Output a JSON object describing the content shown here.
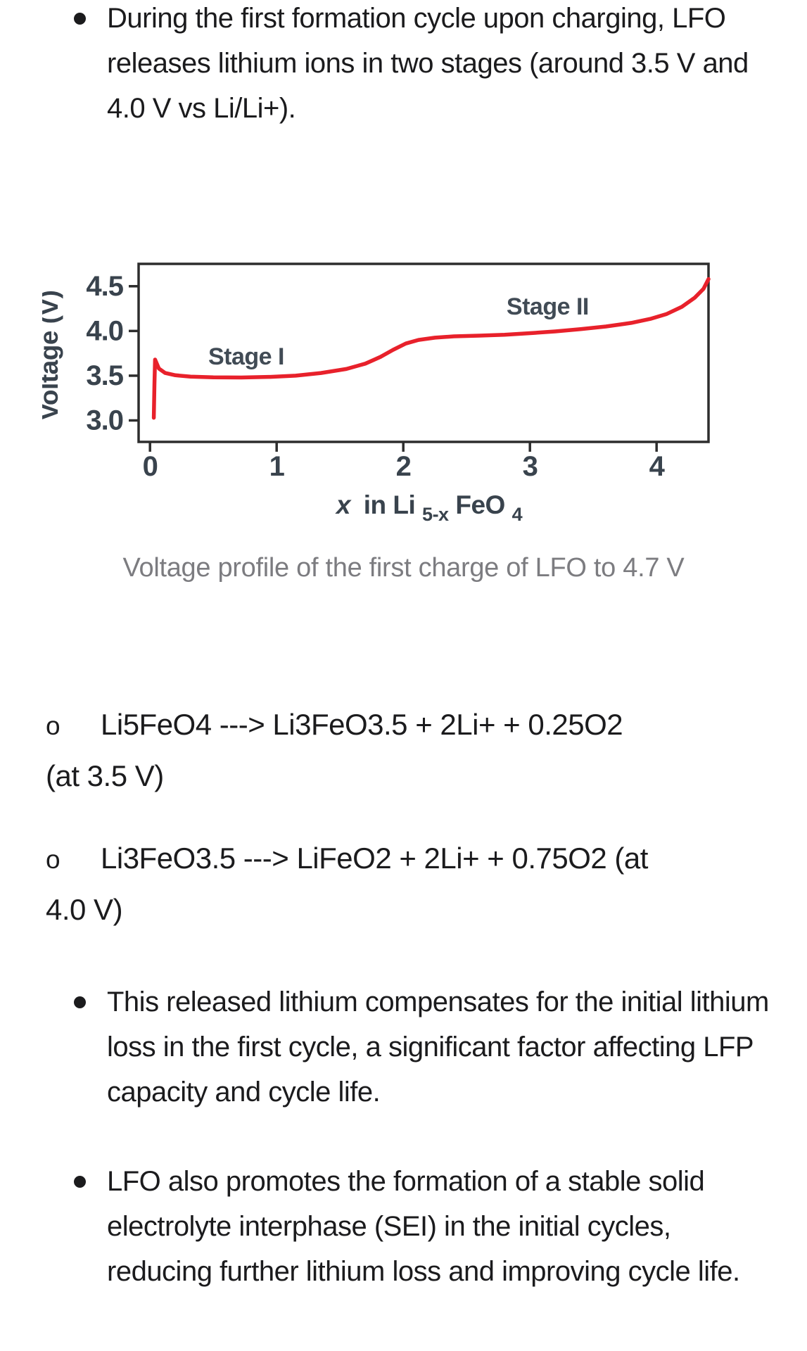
{
  "page": {
    "bullet1": "During the first formation cycle upon charging, LFO releases lithium ions in two stages (around 3.5 V and 4.0 V vs Li/Li+).",
    "caption": "Voltage profile of the first charge of LFO to 4.7 V",
    "equations": [
      {
        "marker": "o",
        "line1": "Li5FeO4 ---> Li3FeO3.5 + 2Li+ + 0.25O2",
        "line2": "(at 3.5 V)"
      },
      {
        "marker": "o",
        "line1": "Li3FeO3.5 ---> LiFeO2 + 2Li+ + 0.75O2 (at",
        "line2": "4.0 V)"
      }
    ],
    "bullet2": "This released lithium compensates for the initial lithium loss in the first cycle, a significant factor affecting LFP capacity and cycle life.",
    "bullet3": "LFO also promotes the formation of a stable solid electrolyte interphase (SEI) in the initial cycles, reducing further lithium loss and improving cycle life."
  },
  "chart_data": {
    "type": "line",
    "title": "",
    "xlabel": "x in Li5-xFeO4",
    "xlabel_parts": {
      "variable": "x",
      "text": "in Li",
      "sub": "5-x",
      "formula": "FeO",
      "sub2": "4"
    },
    "ylabel": "Voltage (V)",
    "xlim": [
      -0.09,
      4.41
    ],
    "ylim": [
      2.76,
      4.75
    ],
    "xtick_values": [
      0,
      1,
      2,
      3,
      4
    ],
    "xticks": [
      "0",
      "1",
      "2",
      "3",
      "4"
    ],
    "ytick_values": [
      3.0,
      3.5,
      4.0,
      4.5
    ],
    "yticks": [
      "3.0",
      "3.5",
      "4.0",
      "4.5"
    ],
    "grid": false,
    "legend": false,
    "line_color": "#e8212b",
    "label_color": "#414b55",
    "annotations": [
      {
        "text": "Stage I",
        "x": 0.76,
        "y": 3.72
      },
      {
        "text": "Stage II",
        "x": 3.14,
        "y": 4.28
      }
    ],
    "series": [
      {
        "name": "First charge voltage profile of LFO",
        "points": [
          [
            0.03,
            3.03
          ],
          [
            0.035,
            3.4
          ],
          [
            0.04,
            3.68
          ],
          [
            0.07,
            3.58
          ],
          [
            0.12,
            3.53
          ],
          [
            0.2,
            3.505
          ],
          [
            0.32,
            3.49
          ],
          [
            0.5,
            3.482
          ],
          [
            0.72,
            3.48
          ],
          [
            0.95,
            3.487
          ],
          [
            1.15,
            3.5
          ],
          [
            1.35,
            3.53
          ],
          [
            1.55,
            3.575
          ],
          [
            1.7,
            3.635
          ],
          [
            1.82,
            3.71
          ],
          [
            1.92,
            3.79
          ],
          [
            2.02,
            3.86
          ],
          [
            2.12,
            3.9
          ],
          [
            2.25,
            3.925
          ],
          [
            2.4,
            3.94
          ],
          [
            2.6,
            3.948
          ],
          [
            2.8,
            3.958
          ],
          [
            3.0,
            3.975
          ],
          [
            3.2,
            3.995
          ],
          [
            3.4,
            4.02
          ],
          [
            3.6,
            4.05
          ],
          [
            3.8,
            4.09
          ],
          [
            3.95,
            4.135
          ],
          [
            4.08,
            4.19
          ],
          [
            4.2,
            4.27
          ],
          [
            4.3,
            4.37
          ],
          [
            4.37,
            4.47
          ],
          [
            4.41,
            4.58
          ]
        ]
      }
    ]
  }
}
